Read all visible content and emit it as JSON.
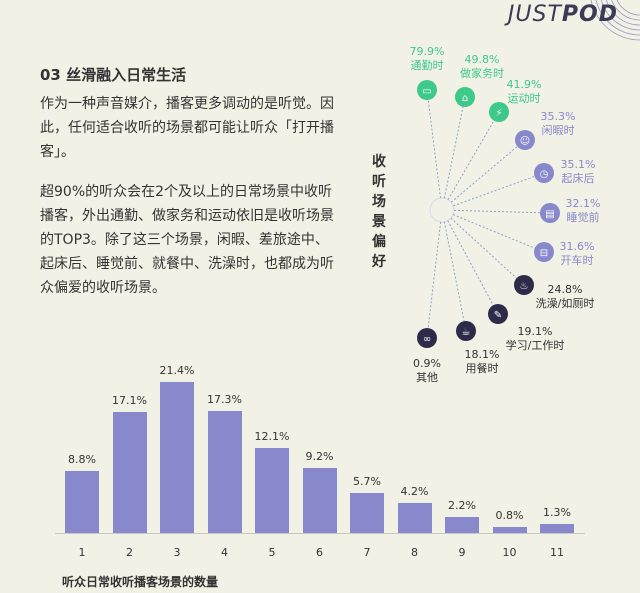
{
  "logo": {
    "text_light": "JUST",
    "text_bold": "POD"
  },
  "title": "03 丝滑融入日常生活",
  "paragraphs": [
    "作为一种声音媒介，播客更多调动的是听觉。因此，任何适合收听的场景都可能让听众「打开播客」。",
    "超90%的听众会在2个及以上的日常场景中收听播客，外出通勤、做家务和运动依旧是收听场景的TOP3。除了这三个场景，闲暇、差旅途中、起床后、睡觉前、就餐中、洗澡时，也都成为听众偏爱的收听场景。"
  ],
  "colors": {
    "green": "#3dc98a",
    "purple": "#8888cc",
    "dark": "#2e2b4a",
    "bar": "#8888cc"
  },
  "chart_data": [
    {
      "type": "radial",
      "title": "收听场景偏好",
      "items": [
        {
          "label": "通勤时",
          "value": "79.9%",
          "group": "green",
          "icon": "bus-icon"
        },
        {
          "label": "做家务时",
          "value": "49.8%",
          "group": "green",
          "icon": "housework-icon"
        },
        {
          "label": "运动时",
          "value": "41.9%",
          "group": "green",
          "icon": "running-icon"
        },
        {
          "label": "闲暇时",
          "value": "35.3%",
          "group": "purple",
          "icon": "lounge-icon"
        },
        {
          "label": "起床后",
          "value": "35.1%",
          "group": "purple",
          "icon": "alarm-clock-icon"
        },
        {
          "label": "睡觉前",
          "value": "32.1%",
          "group": "purple",
          "icon": "bed-icon"
        },
        {
          "label": "开车时",
          "value": "31.6%",
          "group": "purple",
          "icon": "car-icon"
        },
        {
          "label": "洗澡/如厕时",
          "value": "24.8%",
          "group": "dark",
          "icon": "bath-icon"
        },
        {
          "label": "学习/工作时",
          "value": "19.1%",
          "group": "dark",
          "icon": "edit-icon"
        },
        {
          "label": "用餐时",
          "value": "18.1%",
          "group": "dark",
          "icon": "meal-icon"
        },
        {
          "label": "其他",
          "value": "0.9%",
          "group": "dark",
          "icon": "infinity-icon"
        }
      ]
    },
    {
      "type": "bar",
      "xlabel": "听众日常收听播客场景的数量",
      "categories": [
        "1",
        "2",
        "3",
        "4",
        "5",
        "6",
        "7",
        "8",
        "9",
        "10",
        "11"
      ],
      "values": [
        8.8,
        17.1,
        21.4,
        17.3,
        12.1,
        9.2,
        5.7,
        4.2,
        2.2,
        0.8,
        1.3
      ],
      "labels": [
        "8.8%",
        "17.1%",
        "21.4%",
        "17.3%",
        "12.1%",
        "9.2%",
        "5.7%",
        "4.2%",
        "2.2%",
        "0.8%",
        "1.3%"
      ],
      "ylim": [
        0,
        21.4
      ]
    }
  ]
}
